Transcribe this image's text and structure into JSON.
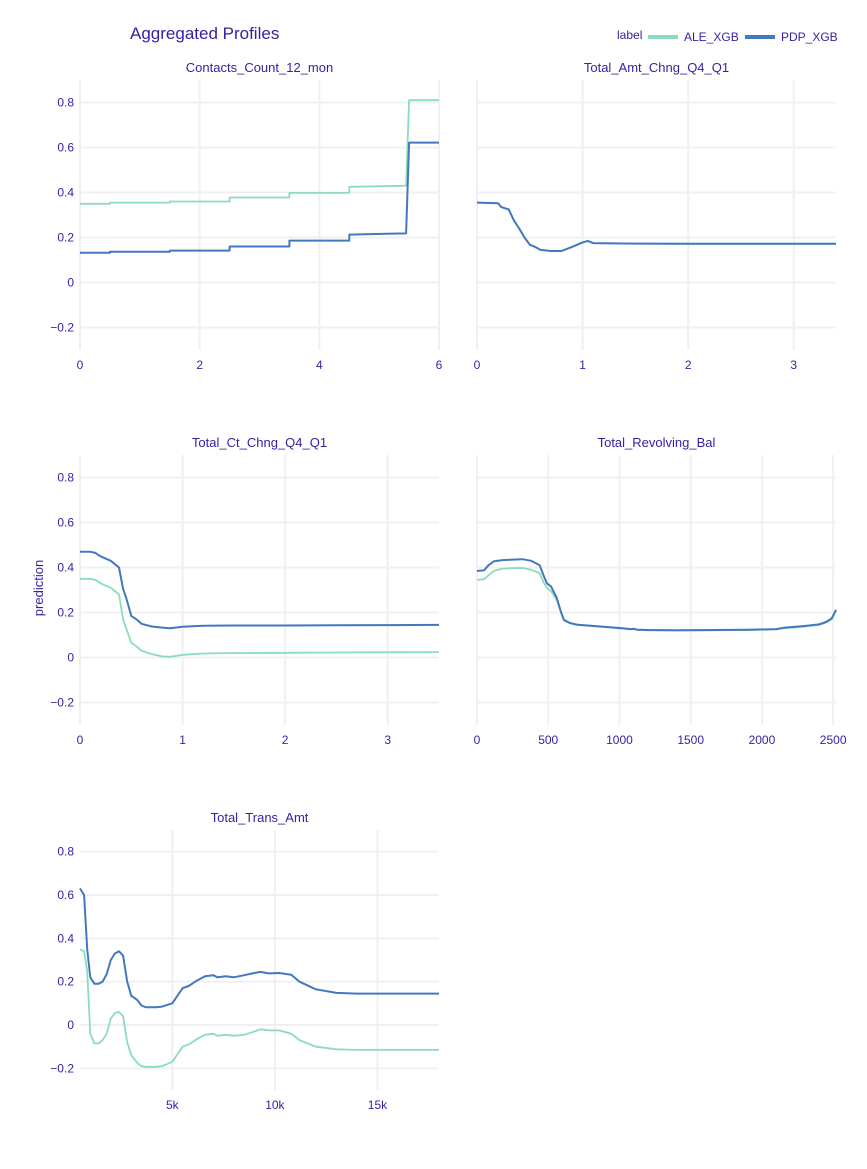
{
  "title": "Aggregated Profiles",
  "legend": {
    "title": "label",
    "position": "top-right"
  },
  "y_axis_label": "prediction",
  "colors": {
    "text": "#371ea3",
    "grid": "#f0f0f4",
    "ALE_XGB": "#8bdcbe",
    "PDP_XGB": "#4378bf"
  },
  "chart_data": [
    {
      "type": "line",
      "title": "Contacts_Count_12_mon",
      "xlim": [
        0,
        6
      ],
      "ylim": [
        -0.3,
        0.9
      ],
      "x_ticks": [
        0,
        2,
        4,
        6
      ],
      "x_tick_labels": [
        "0",
        "2",
        "4",
        "6"
      ],
      "y_ticks": [
        -0.2,
        0,
        0.2,
        0.4,
        0.6,
        0.8
      ],
      "y_tick_labels": [
        "−0.2",
        "0",
        "0.2",
        "0.4",
        "0.6",
        "0.8"
      ],
      "grid": true,
      "series": [
        {
          "name": "ALE_XGB",
          "x": [
            0,
            0.5,
            0.5,
            1.5,
            1.5,
            2.5,
            2.5,
            3.5,
            3.5,
            4.5,
            4.5,
            5.45,
            5.5,
            6
          ],
          "y": [
            0.35,
            0.35,
            0.355,
            0.355,
            0.36,
            0.36,
            0.378,
            0.378,
            0.398,
            0.398,
            0.425,
            0.43,
            0.81,
            0.81
          ]
        },
        {
          "name": "PDP_XGB",
          "x": [
            0,
            0.5,
            0.5,
            1.5,
            1.5,
            2.5,
            2.5,
            3.5,
            3.5,
            4.5,
            4.5,
            5.45,
            5.5,
            6
          ],
          "y": [
            0.132,
            0.132,
            0.137,
            0.137,
            0.142,
            0.142,
            0.16,
            0.16,
            0.186,
            0.186,
            0.213,
            0.218,
            0.622,
            0.622
          ]
        }
      ]
    },
    {
      "type": "line",
      "title": "Total_Amt_Chng_Q4_Q1",
      "xlim": [
        0,
        3.4
      ],
      "ylim": [
        -0.3,
        0.9
      ],
      "x_ticks": [
        0,
        1,
        2,
        3
      ],
      "x_tick_labels": [
        "0",
        "1",
        "2",
        "3"
      ],
      "y_ticks": [
        -0.2,
        0,
        0.2,
        0.4,
        0.6,
        0.8
      ],
      "y_tick_labels": [],
      "grid": true,
      "series": [
        {
          "name": "ALE_XGB",
          "x": [
            0,
            0.2,
            0.23,
            0.3,
            0.35,
            0.4,
            0.45,
            0.5,
            0.55,
            0.6,
            0.7,
            0.8,
            0.9,
            1.0,
            1.05,
            1.1,
            1.5,
            2.0,
            2.5,
            3.0,
            3.4
          ],
          "y": [
            0.355,
            0.352,
            0.335,
            0.325,
            0.275,
            0.24,
            0.2,
            0.168,
            0.158,
            0.145,
            0.14,
            0.14,
            0.158,
            0.178,
            0.185,
            0.175,
            0.173,
            0.172,
            0.172,
            0.172,
            0.172
          ]
        },
        {
          "name": "PDP_XGB",
          "x": [
            0,
            0.2,
            0.23,
            0.3,
            0.35,
            0.4,
            0.45,
            0.5,
            0.55,
            0.6,
            0.7,
            0.8,
            0.9,
            1.0,
            1.05,
            1.1,
            1.5,
            2.0,
            2.5,
            3.0,
            3.4
          ],
          "y": [
            0.355,
            0.352,
            0.335,
            0.325,
            0.275,
            0.24,
            0.2,
            0.168,
            0.158,
            0.145,
            0.14,
            0.14,
            0.158,
            0.178,
            0.185,
            0.175,
            0.173,
            0.172,
            0.172,
            0.172,
            0.172
          ]
        }
      ]
    },
    {
      "type": "line",
      "title": "Total_Ct_Chng_Q4_Q1",
      "xlim": [
        0,
        3.5
      ],
      "ylim": [
        -0.3,
        0.9
      ],
      "x_ticks": [
        0,
        1,
        2,
        3
      ],
      "x_tick_labels": [
        "0",
        "1",
        "2",
        "3"
      ],
      "y_ticks": [
        -0.2,
        0,
        0.2,
        0.4,
        0.6,
        0.8
      ],
      "y_tick_labels": [
        "−0.2",
        "0",
        "0.2",
        "0.4",
        "0.6",
        "0.8"
      ],
      "y_axis_title": "prediction",
      "grid": true,
      "series": [
        {
          "name": "ALE_XGB",
          "x": [
            0,
            0.1,
            0.15,
            0.2,
            0.3,
            0.38,
            0.42,
            0.45,
            0.5,
            0.55,
            0.6,
            0.7,
            0.8,
            0.88,
            1.0,
            1.2,
            1.5,
            2.0,
            2.5,
            3.0,
            3.5
          ],
          "y": [
            0.35,
            0.35,
            0.345,
            0.33,
            0.31,
            0.28,
            0.17,
            0.13,
            0.065,
            0.05,
            0.03,
            0.015,
            0.005,
            0.003,
            0.012,
            0.018,
            0.02,
            0.021,
            0.022,
            0.023,
            0.024
          ]
        },
        {
          "name": "PDP_XGB",
          "x": [
            0,
            0.1,
            0.15,
            0.2,
            0.3,
            0.38,
            0.42,
            0.45,
            0.5,
            0.55,
            0.6,
            0.7,
            0.8,
            0.88,
            1.0,
            1.2,
            1.5,
            2.0,
            2.5,
            3.0,
            3.5
          ],
          "y": [
            0.47,
            0.47,
            0.465,
            0.45,
            0.43,
            0.4,
            0.305,
            0.265,
            0.185,
            0.17,
            0.15,
            0.138,
            0.133,
            0.13,
            0.137,
            0.141,
            0.142,
            0.142,
            0.143,
            0.144,
            0.145
          ]
        }
      ]
    },
    {
      "type": "line",
      "title": "Total_Revolving_Bal",
      "xlim": [
        0,
        2520
      ],
      "ylim": [
        -0.3,
        0.9
      ],
      "x_ticks": [
        0,
        500,
        1000,
        1500,
        2000,
        2500
      ],
      "x_tick_labels": [
        "0",
        "500",
        "1000",
        "1500",
        "2000",
        "2500"
      ],
      "y_ticks": [
        -0.2,
        0,
        0.2,
        0.4,
        0.6,
        0.8
      ],
      "y_tick_labels": [],
      "grid": true,
      "series": [
        {
          "name": "ALE_XGB",
          "x": [
            0,
            50,
            80,
            120,
            180,
            250,
            320,
            380,
            440,
            470,
            490,
            520,
            560,
            590,
            610,
            650,
            700,
            800,
            900,
            1000,
            1080,
            1100,
            1120,
            1200,
            1400,
            1650,
            1900,
            2100,
            2150,
            2300,
            2400,
            2450,
            2490,
            2520
          ],
          "y": [
            0.345,
            0.348,
            0.365,
            0.385,
            0.395,
            0.397,
            0.398,
            0.39,
            0.375,
            0.33,
            0.31,
            0.295,
            0.255,
            0.2,
            0.165,
            0.153,
            0.145,
            0.14,
            0.135,
            0.13,
            0.125,
            0.127,
            0.123,
            0.121,
            0.12,
            0.121,
            0.122,
            0.125,
            0.13,
            0.138,
            0.145,
            0.155,
            0.17,
            0.208
          ]
        },
        {
          "name": "PDP_XGB",
          "x": [
            0,
            50,
            80,
            120,
            180,
            250,
            320,
            380,
            440,
            470,
            490,
            520,
            560,
            590,
            610,
            650,
            700,
            800,
            900,
            1000,
            1080,
            1100,
            1120,
            1200,
            1400,
            1650,
            1900,
            2100,
            2150,
            2300,
            2400,
            2450,
            2490,
            2520
          ],
          "y": [
            0.385,
            0.387,
            0.41,
            0.428,
            0.433,
            0.435,
            0.437,
            0.43,
            0.41,
            0.36,
            0.33,
            0.315,
            0.265,
            0.2,
            0.167,
            0.154,
            0.146,
            0.141,
            0.136,
            0.131,
            0.126,
            0.128,
            0.124,
            0.122,
            0.121,
            0.122,
            0.123,
            0.126,
            0.132,
            0.14,
            0.147,
            0.158,
            0.174,
            0.212
          ]
        }
      ]
    },
    {
      "type": "line",
      "title": "Total_Trans_Amt",
      "xlim": [
        500,
        18000
      ],
      "ylim": [
        -0.3,
        0.9
      ],
      "x_ticks": [
        5000,
        10000,
        15000
      ],
      "x_tick_labels": [
        "5k",
        "10k",
        "15k"
      ],
      "y_ticks": [
        -0.2,
        0,
        0.2,
        0.4,
        0.6,
        0.8
      ],
      "y_tick_labels": [
        "−0.2",
        "0",
        "0.2",
        "0.4",
        "0.6",
        "0.8"
      ],
      "grid": true,
      "series": [
        {
          "name": "ALE_XGB",
          "x": [
            500,
            700,
            850,
            1000,
            1200,
            1400,
            1600,
            1800,
            2000,
            2200,
            2400,
            2600,
            2800,
            3000,
            3300,
            3500,
            3700,
            4200,
            4500,
            5000,
            5500,
            5800,
            6200,
            6600,
            7000,
            7200,
            7600,
            8000,
            8500,
            9000,
            9300,
            9700,
            10200,
            10800,
            11200,
            12000,
            13000,
            14000,
            16000,
            18000
          ],
          "y": [
            0.35,
            0.34,
            0.25,
            -0.04,
            -0.085,
            -0.085,
            -0.07,
            -0.04,
            0.03,
            0.055,
            0.06,
            0.04,
            -0.08,
            -0.14,
            -0.175,
            -0.19,
            -0.193,
            -0.193,
            -0.19,
            -0.17,
            -0.1,
            -0.09,
            -0.065,
            -0.045,
            -0.04,
            -0.05,
            -0.045,
            -0.05,
            -0.045,
            -0.03,
            -0.02,
            -0.025,
            -0.025,
            -0.04,
            -0.07,
            -0.1,
            -0.112,
            -0.115,
            -0.115,
            -0.115
          ]
        },
        {
          "name": "PDP_XGB",
          "x": [
            500,
            700,
            850,
            1000,
            1200,
            1400,
            1600,
            1800,
            2000,
            2200,
            2400,
            2600,
            2800,
            3000,
            3300,
            3500,
            3700,
            4200,
            4500,
            5000,
            5500,
            5800,
            6200,
            6600,
            7000,
            7200,
            7600,
            8000,
            8500,
            9000,
            9300,
            9700,
            10200,
            10800,
            11200,
            12000,
            13000,
            14000,
            16000,
            18000
          ],
          "y": [
            0.63,
            0.6,
            0.35,
            0.22,
            0.19,
            0.19,
            0.2,
            0.235,
            0.3,
            0.33,
            0.34,
            0.32,
            0.2,
            0.135,
            0.115,
            0.09,
            0.082,
            0.082,
            0.085,
            0.1,
            0.17,
            0.18,
            0.205,
            0.225,
            0.23,
            0.22,
            0.225,
            0.22,
            0.23,
            0.24,
            0.245,
            0.238,
            0.24,
            0.232,
            0.2,
            0.165,
            0.148,
            0.145,
            0.145,
            0.145
          ]
        }
      ]
    }
  ]
}
